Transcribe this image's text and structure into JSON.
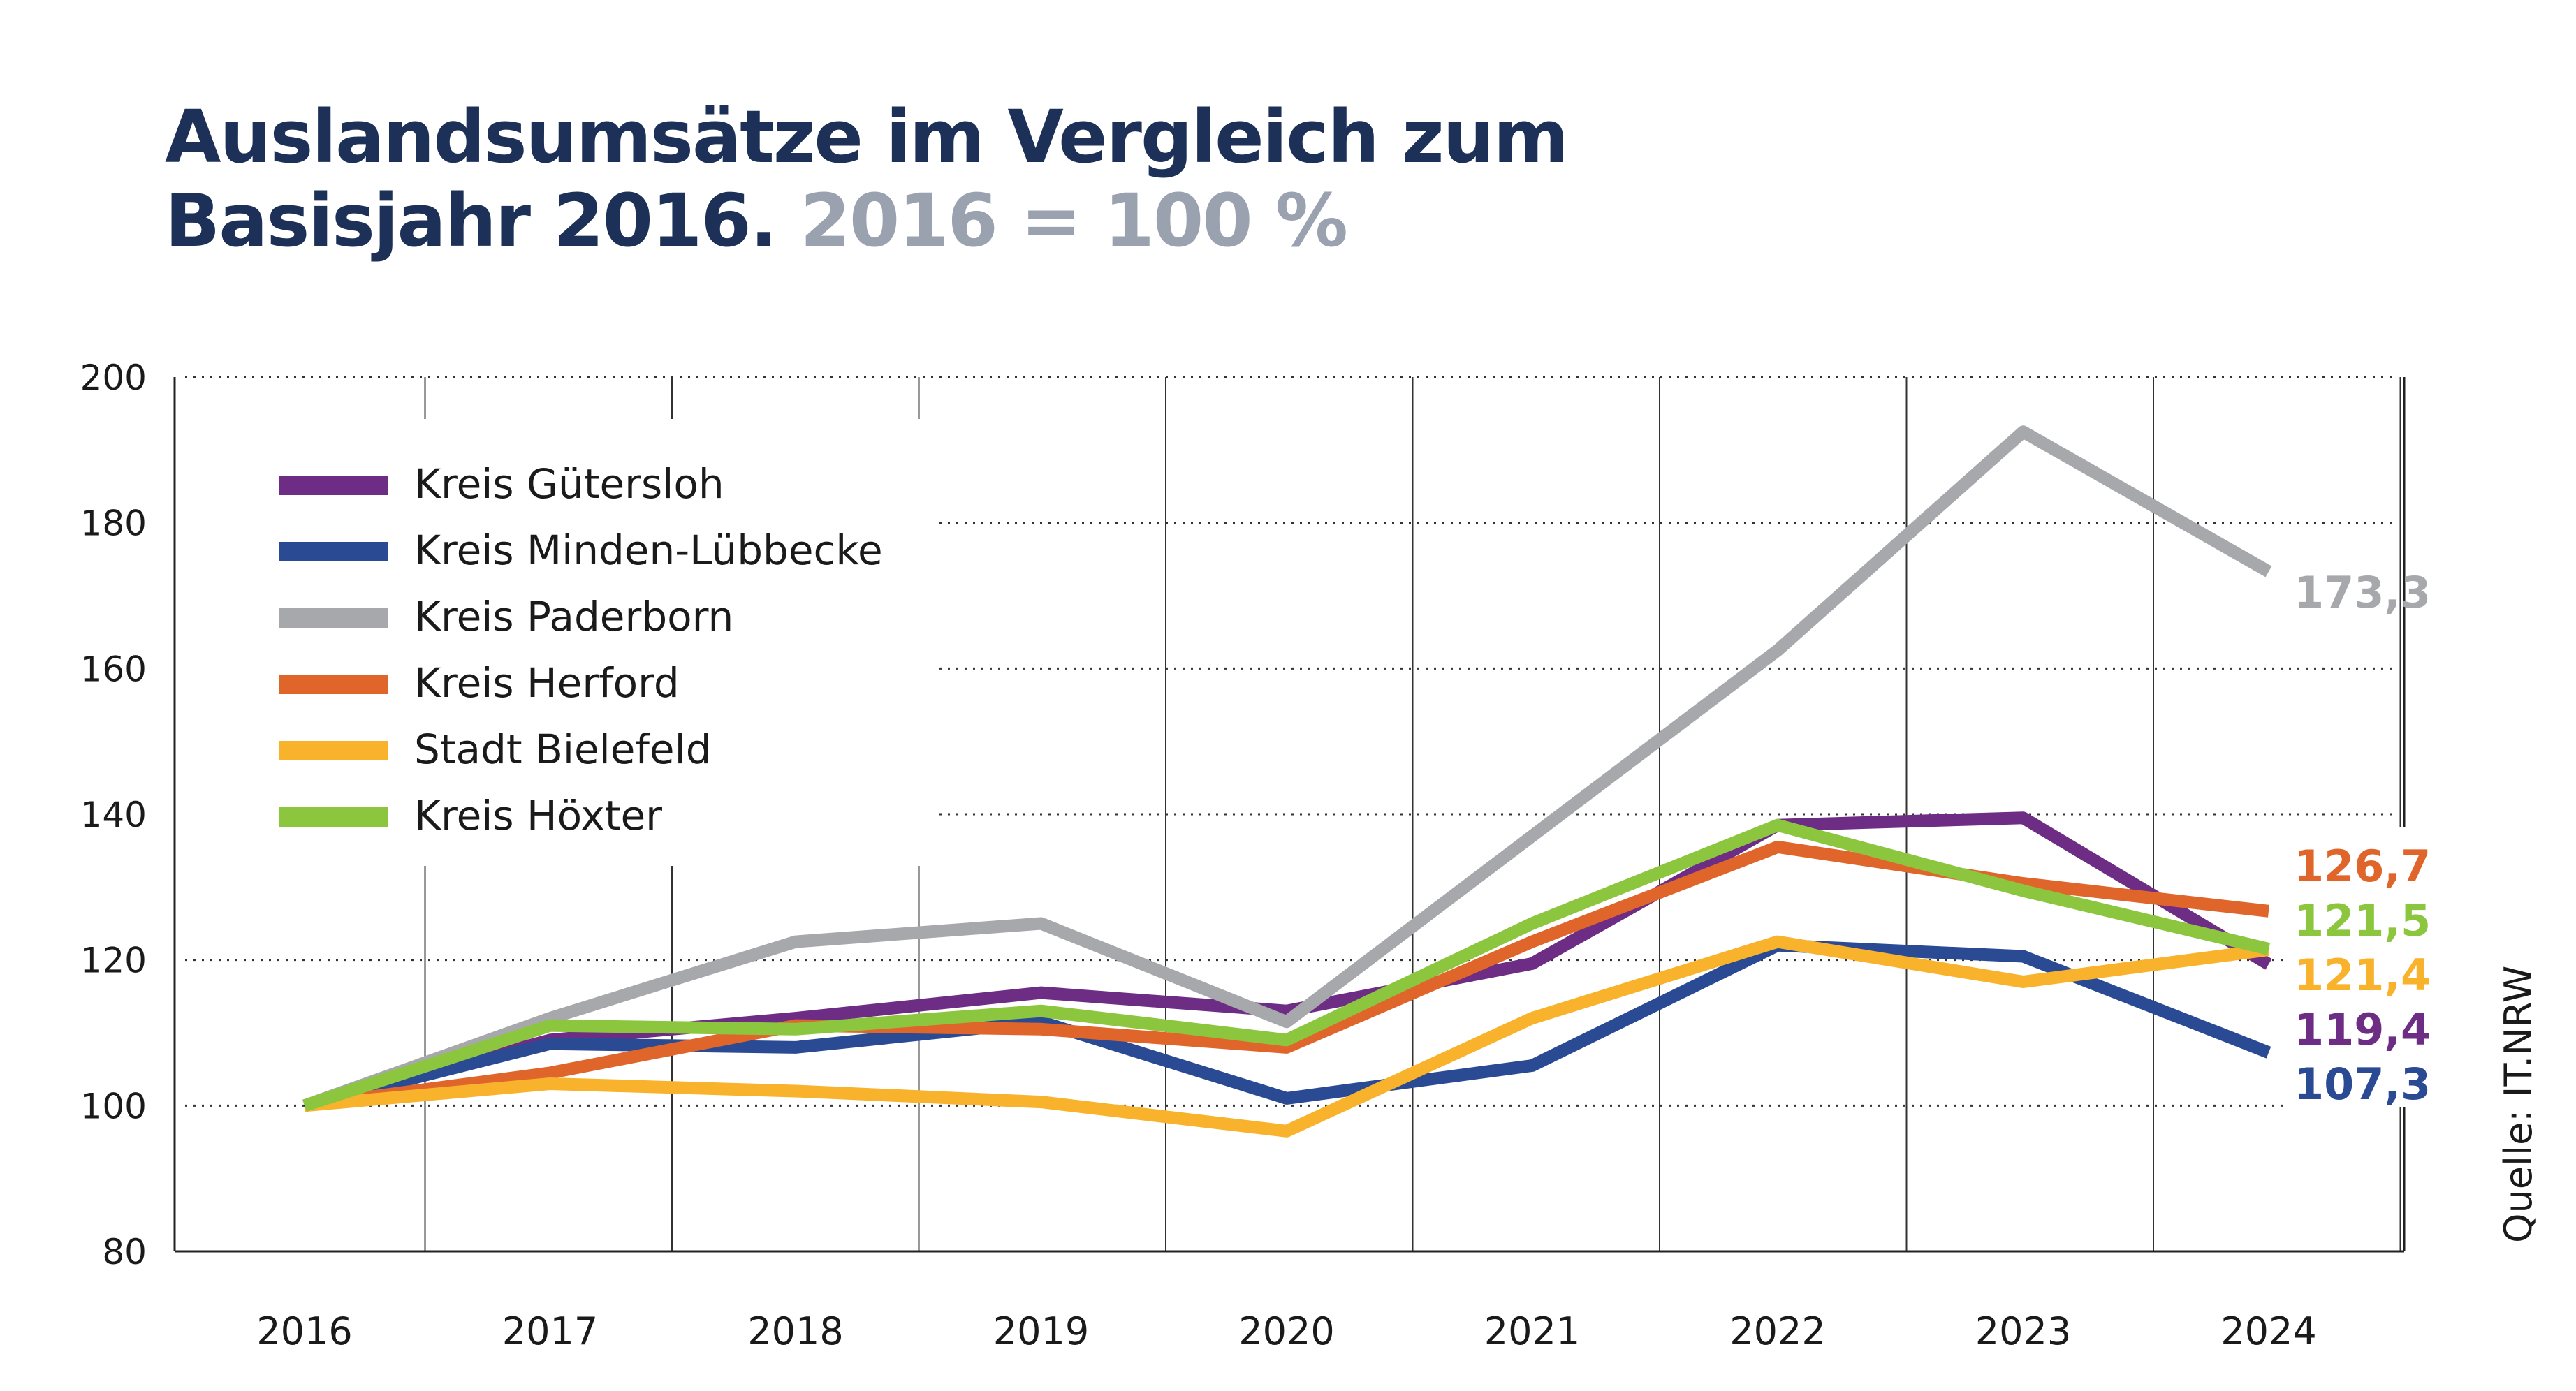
{
  "title": {
    "line1": "Auslandsumsätze im Vergleich zum",
    "line2": "Basisjahr 2016.",
    "subtitle": "2016 = 100 %"
  },
  "source": "Quelle: IT.NRW",
  "chart_data": {
    "type": "line",
    "x": [
      "2016",
      "2017",
      "2018",
      "2019",
      "2020",
      "2021",
      "2022",
      "2023",
      "2024"
    ],
    "ylim": [
      80,
      200
    ],
    "yticks": [
      80,
      100,
      120,
      140,
      160,
      180,
      200
    ],
    "grid": true,
    "legend_position": "top-left",
    "series": [
      {
        "name": "Kreis Gütersloh",
        "color": "#6e2d84",
        "values": [
          100,
          109,
          112,
          115.5,
          113,
          119.5,
          138.5,
          139.5,
          119.4
        ],
        "end_label": "119,4"
      },
      {
        "name": "Kreis Minden-Lübbecke",
        "color": "#2a4b94",
        "values": [
          100,
          108.5,
          108,
          111.5,
          101,
          105.5,
          122,
          120.5,
          107.3
        ],
        "end_label": "107,3"
      },
      {
        "name": "Kreis Paderborn",
        "color": "#a7a8ac",
        "values": [
          100,
          112,
          122.5,
          125,
          111.5,
          137,
          162.5,
          192.5,
          173.3
        ],
        "end_label": "173,3"
      },
      {
        "name": "Kreis Herford",
        "color": "#e0652a",
        "values": [
          100,
          104.5,
          111,
          110.5,
          108,
          122.5,
          135.5,
          130.5,
          126.7
        ],
        "end_label": "126,7"
      },
      {
        "name": "Stadt Bielefeld",
        "color": "#f9b22b",
        "values": [
          100,
          103,
          102,
          100.5,
          96.5,
          112,
          122.5,
          117,
          121.4
        ],
        "end_label": "121,4"
      },
      {
        "name": "Kreis Höxter",
        "color": "#8cc63f",
        "values": [
          100,
          111,
          110.5,
          113,
          109,
          125,
          138.5,
          129.5,
          121.5
        ],
        "end_label": "121,5"
      }
    ]
  }
}
